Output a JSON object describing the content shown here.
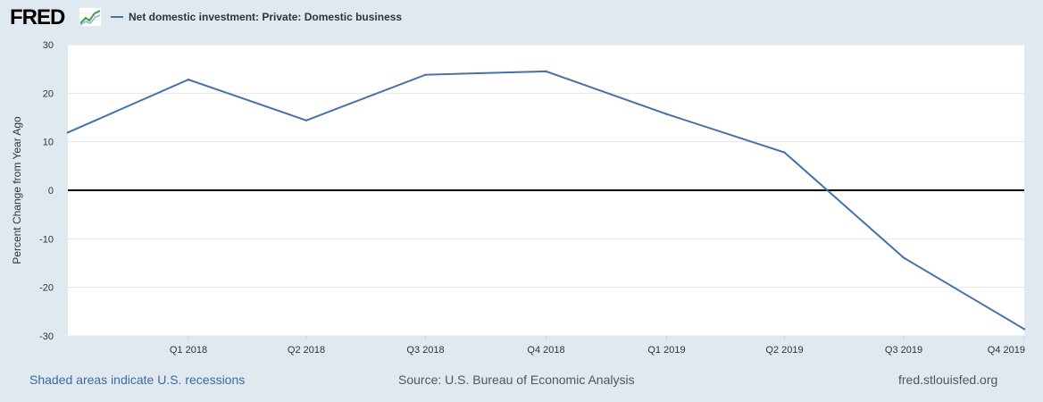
{
  "header": {
    "logo_text": "FRED",
    "legend_label": "Net domestic investment: Private: Domestic business"
  },
  "colors": {
    "series": "#4572a7",
    "zero_line": "#000000",
    "grid": "#e6e6e6",
    "link": "#3b6aa0"
  },
  "icons": {
    "logo_graph": "line-chart-icon"
  },
  "chart_data": {
    "type": "line",
    "title": "",
    "ylabel": "Percent Change from Year Ago",
    "xlabel": "",
    "ylim": [
      -30,
      30
    ],
    "yticks": [
      -30,
      -20,
      -10,
      0,
      10,
      20,
      30
    ],
    "grid": true,
    "legend": "top-left",
    "x_tick_labels": [
      "Q1 2018",
      "Q2 2018",
      "Q3 2018",
      "Q4 2018",
      "Q1 2019",
      "Q2 2019",
      "Q3 2019",
      "Q4 2019"
    ],
    "series": [
      {
        "name": "Net domestic investment: Private: Domestic business",
        "x": [
          "2017-10-01",
          "2018-01-01",
          "2018-04-01",
          "2018-07-01",
          "2018-10-01",
          "2019-01-01",
          "2019-04-01",
          "2019-07-01",
          "2019-10-01"
        ],
        "values": [
          11.9,
          22.8,
          14.4,
          23.8,
          24.5,
          15.7,
          7.8,
          -13.9,
          -28.6
        ]
      }
    ]
  },
  "footer": {
    "recessions": "Shaded areas indicate U.S. recessions",
    "source": "Source: U.S. Bureau of Economic Analysis",
    "site": "fred.stlouisfed.org"
  }
}
